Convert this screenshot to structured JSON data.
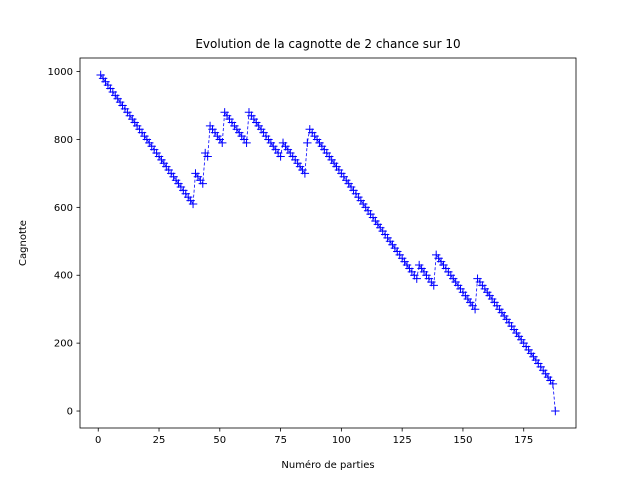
{
  "chart_data": {
    "type": "line",
    "title": "Evolution de la cagnotte de 2 chance sur 10",
    "xlabel": "Numéro de parties",
    "ylabel": "Cagnotte",
    "xlim": [
      -7.5,
      196.5
    ],
    "ylim": [
      -50,
      1040
    ],
    "x_ticks": [
      0,
      25,
      50,
      75,
      100,
      125,
      150,
      175
    ],
    "y_ticks": [
      0,
      200,
      400,
      600,
      800,
      1000
    ],
    "grid": false,
    "legend": "none",
    "marker": "plus",
    "line_style": "dashed",
    "color": "#0000ff",
    "start_value": 990,
    "step_loss": 10,
    "win_gains": {
      "40": 90,
      "44": 90,
      "46": 90,
      "52": 90,
      "62": 90,
      "76": 40,
      "86": 90,
      "87": 40,
      "132": 40,
      "139": 90,
      "156": 90
    },
    "x_first": 1,
    "x_last": 188,
    "y_last": 0
  }
}
